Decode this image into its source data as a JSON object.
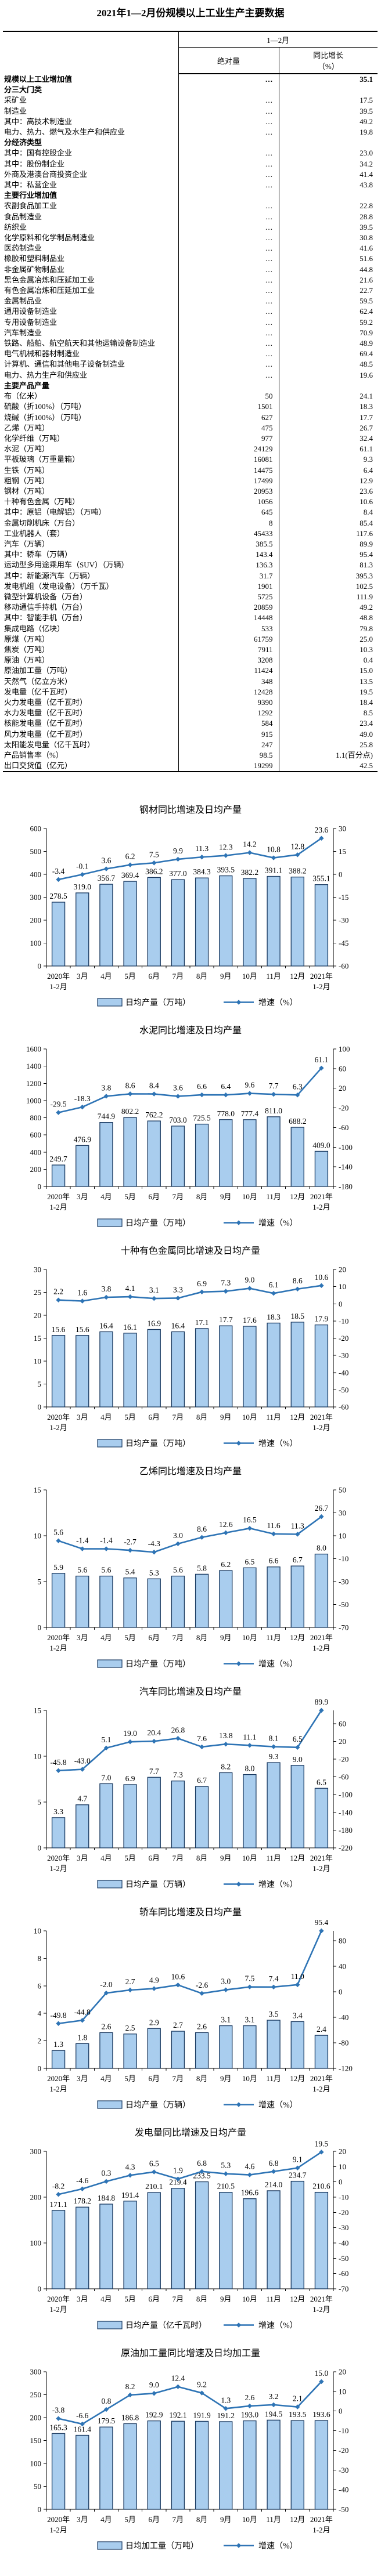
{
  "page": {
    "title": "2021年1—2月份规模以上工业生产主要数据"
  },
  "table": {
    "period_header": "1—2月",
    "col_absolute": "绝对量",
    "col_growth_line1": "同比增长",
    "col_growth_line2": "（%）",
    "rows": [
      {
        "l": "规模以上工业增加值",
        "a": "…",
        "g": "35.1",
        "b": 1,
        "i": 0
      },
      {
        "l": "分三大门类",
        "a": "",
        "g": "",
        "b": 1,
        "i": 0
      },
      {
        "l": "采矿业",
        "a": "…",
        "g": "17.5",
        "b": 0,
        "i": 1
      },
      {
        "l": "制造业",
        "a": "…",
        "g": "39.5",
        "b": 0,
        "i": 1
      },
      {
        "l": "其中：高技术制造业",
        "a": "…",
        "g": "49.2",
        "b": 0,
        "i": 2
      },
      {
        "l": "电力、热力、燃气及水生产和供应业",
        "a": "…",
        "g": "19.8",
        "b": 0,
        "i": 1
      },
      {
        "l": "分经济类型",
        "a": "",
        "g": "",
        "b": 1,
        "i": 0
      },
      {
        "l": "其中：国有控股企业",
        "a": "…",
        "g": "23.0",
        "b": 0,
        "i": 1
      },
      {
        "l": "其中：股份制企业",
        "a": "…",
        "g": "34.2",
        "b": 0,
        "i": 1
      },
      {
        "l": "外商及港澳台商投资企业",
        "a": "…",
        "g": "41.4",
        "b": 0,
        "i": 3
      },
      {
        "l": "其中：私营企业",
        "a": "…",
        "g": "43.8",
        "b": 0,
        "i": 1
      },
      {
        "l": "主要行业增加值",
        "a": "",
        "g": "",
        "b": 1,
        "i": 0
      },
      {
        "l": "农副食品加工业",
        "a": "…",
        "g": "22.8",
        "b": 0,
        "i": 1
      },
      {
        "l": "食品制造业",
        "a": "…",
        "g": "28.8",
        "b": 0,
        "i": 1
      },
      {
        "l": "纺织业",
        "a": "…",
        "g": "39.5",
        "b": 0,
        "i": 1
      },
      {
        "l": "化学原料和化学制品制造业",
        "a": "…",
        "g": "30.8",
        "b": 0,
        "i": 1
      },
      {
        "l": "医药制造业",
        "a": "…",
        "g": "41.6",
        "b": 0,
        "i": 1
      },
      {
        "l": "橡胶和塑料制品业",
        "a": "…",
        "g": "51.6",
        "b": 0,
        "i": 1
      },
      {
        "l": "非金属矿物制品业",
        "a": "…",
        "g": "44.8",
        "b": 0,
        "i": 1
      },
      {
        "l": "黑色金属冶炼和压延加工业",
        "a": "…",
        "g": "21.6",
        "b": 0,
        "i": 1
      },
      {
        "l": "有色金属冶炼和压延加工业",
        "a": "…",
        "g": "22.7",
        "b": 0,
        "i": 1
      },
      {
        "l": "金属制品业",
        "a": "…",
        "g": "59.5",
        "b": 0,
        "i": 1
      },
      {
        "l": "通用设备制造业",
        "a": "…",
        "g": "62.4",
        "b": 0,
        "i": 1
      },
      {
        "l": "专用设备制造业",
        "a": "…",
        "g": "59.2",
        "b": 0,
        "i": 1
      },
      {
        "l": "汽车制造业",
        "a": "…",
        "g": "70.9",
        "b": 0,
        "i": 1
      },
      {
        "l": "铁路、船舶、航空航天和其他运输设备制造业",
        "a": "…",
        "g": "48.9",
        "b": 0,
        "i": 1
      },
      {
        "l": "电气机械和器材制造业",
        "a": "…",
        "g": "69.4",
        "b": 0,
        "i": 1
      },
      {
        "l": "计算机、通信和其他电子设备制造业",
        "a": "…",
        "g": "48.5",
        "b": 0,
        "i": 1
      },
      {
        "l": "电力、热力生产和供应业",
        "a": "…",
        "g": "19.6",
        "b": 0,
        "i": 1
      },
      {
        "l": "主要产品产量",
        "a": "",
        "g": "",
        "b": 1,
        "i": 0
      },
      {
        "l": "布（亿米）",
        "a": "50",
        "g": "24.1",
        "b": 0,
        "i": 1
      },
      {
        "l": "硫酸（折100%）（万吨）",
        "a": "1501",
        "g": "18.3",
        "b": 0,
        "i": 1
      },
      {
        "l": "烧碱（折100%）（万吨）",
        "a": "627",
        "g": "17.7",
        "b": 0,
        "i": 1
      },
      {
        "l": "乙烯（万吨）",
        "a": "475",
        "g": "26.7",
        "b": 0,
        "i": 1
      },
      {
        "l": "化学纤维（万吨）",
        "a": "977",
        "g": "32.4",
        "b": 0,
        "i": 1
      },
      {
        "l": "水泥（万吨）",
        "a": "24129",
        "g": "61.1",
        "b": 0,
        "i": 1
      },
      {
        "l": "平板玻璃（万重量箱）",
        "a": "16081",
        "g": "9.3",
        "b": 0,
        "i": 1
      },
      {
        "l": "生铁（万吨）",
        "a": "14475",
        "g": "6.4",
        "b": 0,
        "i": 1
      },
      {
        "l": "粗钢（万吨）",
        "a": "17499",
        "g": "12.9",
        "b": 0,
        "i": 1
      },
      {
        "l": "钢材（万吨）",
        "a": "20953",
        "g": "23.6",
        "b": 0,
        "i": 1
      },
      {
        "l": "十种有色金属（万吨）",
        "a": "1056",
        "g": "10.6",
        "b": 0,
        "i": 1
      },
      {
        "l": "其中：原铝（电解铝）（万吨）",
        "a": "645",
        "g": "8.4",
        "b": 0,
        "i": 2
      },
      {
        "l": "金属切削机床（万台）",
        "a": "8",
        "g": "85.4",
        "b": 0,
        "i": 1
      },
      {
        "l": "工业机器人（套）",
        "a": "45433",
        "g": "117.6",
        "b": 0,
        "i": 1
      },
      {
        "l": "汽车（万辆）",
        "a": "385.5",
        "g": "89.9",
        "b": 0,
        "i": 1
      },
      {
        "l": "其中：轿车（万辆）",
        "a": "143.4",
        "g": "95.4",
        "b": 0,
        "i": 2
      },
      {
        "l": "运动型多用途乘用车（SUV）（万辆）",
        "a": "136.3",
        "g": "81.3",
        "b": 0,
        "i": 3
      },
      {
        "l": "其中：新能源汽车（万辆）",
        "a": "31.7",
        "g": "395.3",
        "b": 0,
        "i": 2
      },
      {
        "l": "发电机组（发电设备）（万千瓦）",
        "a": "1901",
        "g": "102.5",
        "b": 0,
        "i": 1
      },
      {
        "l": "微型计算机设备（万台）",
        "a": "5725",
        "g": "111.9",
        "b": 0,
        "i": 1
      },
      {
        "l": "移动通信手持机（万台）",
        "a": "20859",
        "g": "49.2",
        "b": 0,
        "i": 1
      },
      {
        "l": "其中：智能手机（万台）",
        "a": "14448",
        "g": "48.8",
        "b": 0,
        "i": 2
      },
      {
        "l": "集成电路（亿块）",
        "a": "533",
        "g": "79.8",
        "b": 0,
        "i": 1
      },
      {
        "l": "原煤（万吨）",
        "a": "61759",
        "g": "25.0",
        "b": 0,
        "i": 1
      },
      {
        "l": "焦炭（万吨）",
        "a": "7911",
        "g": "10.3",
        "b": 0,
        "i": 1
      },
      {
        "l": "原油（万吨）",
        "a": "3208",
        "g": "0.4",
        "b": 0,
        "i": 1
      },
      {
        "l": "原油加工量（万吨）",
        "a": "11424",
        "g": "15.0",
        "b": 0,
        "i": 1
      },
      {
        "l": "天然气（亿立方米）",
        "a": "348",
        "g": "13.5",
        "b": 0,
        "i": 1
      },
      {
        "l": "发电量（亿千瓦时）",
        "a": "12428",
        "g": "19.5",
        "b": 0,
        "i": 1
      },
      {
        "l": "火力发电量（亿千瓦时）",
        "a": "9390",
        "g": "18.4",
        "b": 0,
        "i": 2
      },
      {
        "l": "水力发电量（亿千瓦时）",
        "a": "1292",
        "g": "8.5",
        "b": 0,
        "i": 2
      },
      {
        "l": "核能发电量（亿千瓦时）",
        "a": "584",
        "g": "23.4",
        "b": 0,
        "i": 2
      },
      {
        "l": "风力发电量（亿千瓦时）",
        "a": "915",
        "g": "49.0",
        "b": 0,
        "i": 2
      },
      {
        "l": "太阳能发电量（亿千瓦时）",
        "a": "247",
        "g": "25.8",
        "b": 0,
        "i": 2
      },
      {
        "l": "产品销售率（%）",
        "a": "98.5",
        "g": "1.1(百分点)",
        "b": 0,
        "i": 1
      },
      {
        "l": "出口交货值（亿元）",
        "a": "19299",
        "g": "42.5",
        "b": 0,
        "i": 1
      }
    ]
  },
  "colors": {
    "bar_fill": "#A9CDEE",
    "bar_border": "#17375E",
    "line": "#2E74B5",
    "text": "#000000"
  },
  "chart_common": {
    "categories": [
      [
        "2020年",
        "1-2月"
      ],
      "3月",
      "4月",
      "5月",
      "6月",
      "7月",
      "8月",
      "9月",
      "10月",
      "11月",
      "12月",
      [
        "2021年",
        "1-2月"
      ]
    ],
    "growth_legend": "增速（%）"
  },
  "chart_data": [
    {
      "type": "bar-line",
      "key": "steel",
      "title": "钢材同比增速及日均产量",
      "bar_legend": "日均产量（万吨）",
      "bar_values": [
        278.5,
        319.0,
        356.7,
        369.4,
        386.2,
        377.0,
        384.3,
        393.5,
        382.2,
        391.1,
        388.2,
        355.1
      ],
      "line_values": [
        -3.4,
        -0.1,
        3.6,
        6.2,
        7.5,
        9.9,
        11.3,
        12.3,
        14.2,
        10.8,
        12.8,
        23.6
      ],
      "left_ticks": [
        0,
        100,
        200,
        300,
        400,
        500,
        600
      ],
      "right_ticks": [
        -60,
        -45,
        -30,
        -15,
        0,
        15,
        30
      ]
    },
    {
      "type": "bar-line",
      "key": "cement",
      "title": "水泥同比增速及日均产量",
      "bar_legend": "日均产量（万吨）",
      "bar_values": [
        249.7,
        476.9,
        744.9,
        802.2,
        762.2,
        703.0,
        725.5,
        778.0,
        777.4,
        811.0,
        688.2,
        409.0
      ],
      "line_values": [
        -29.5,
        -18.3,
        3.8,
        8.6,
        8.4,
        3.6,
        6.6,
        6.4,
        9.6,
        7.7,
        6.3,
        61.1
      ],
      "left_ticks": [
        0,
        200,
        400,
        600,
        800,
        1000,
        1200,
        1400,
        1600
      ],
      "right_ticks": [
        -180,
        -140,
        -100,
        -60,
        -20,
        20,
        60,
        100
      ]
    },
    {
      "type": "bar-line",
      "key": "nonferrous",
      "title": "十种有色金属同比增速及日均产量",
      "bar_legend": "日均产量（万吨）",
      "bar_values": [
        15.6,
        15.6,
        16.4,
        16.1,
        16.9,
        16.4,
        17.1,
        17.7,
        17.6,
        18.3,
        18.5,
        17.9
      ],
      "line_values": [
        2.2,
        1.6,
        3.8,
        4.1,
        3.1,
        3.3,
        6.9,
        7.3,
        9.0,
        6.1,
        8.6,
        10.6
      ],
      "left_ticks": [
        0,
        5,
        10,
        15,
        20,
        25,
        30
      ],
      "right_ticks": [
        -60,
        -50,
        -40,
        -30,
        -20,
        -10,
        0,
        10,
        20
      ]
    },
    {
      "type": "bar-line",
      "key": "ethylene",
      "title": "乙烯同比增速及日均产量",
      "bar_legend": "日均产量（万吨）",
      "bar_values": [
        5.9,
        5.6,
        5.6,
        5.4,
        5.3,
        5.6,
        5.8,
        6.2,
        6.5,
        6.6,
        6.7,
        8.0
      ],
      "line_values": [
        5.6,
        -1.4,
        -1.4,
        -2.7,
        -4.3,
        3.0,
        8.6,
        12.6,
        16.5,
        11.6,
        11.3,
        26.7
      ],
      "left_ticks": [
        0,
        5,
        10,
        15
      ],
      "right_ticks": [
        -70,
        -50,
        -30,
        -10,
        10,
        30,
        50
      ]
    },
    {
      "type": "bar-line",
      "key": "auto",
      "title": "汽车同比增速及日均产量",
      "bar_legend": "日均产量（万辆）",
      "bar_values": [
        3.3,
        4.7,
        7.0,
        6.9,
        7.7,
        7.3,
        6.7,
        8.2,
        8.0,
        9.3,
        9.0,
        6.5
      ],
      "line_values": [
        -45.8,
        -43.0,
        5.1,
        19.0,
        20.4,
        26.8,
        7.6,
        13.8,
        11.1,
        8.1,
        6.5,
        89.9
      ],
      "left_ticks": [
        0,
        5,
        10,
        15
      ],
      "right_ticks": [
        -220,
        -180,
        -140,
        -100,
        -60,
        -20,
        20,
        60
      ]
    },
    {
      "type": "bar-line",
      "key": "car",
      "title": "轿车同比增速及日均产量",
      "bar_legend": "日均产量（万辆）",
      "bar_values": [
        1.3,
        1.8,
        2.6,
        2.5,
        2.9,
        2.7,
        2.6,
        3.1,
        3.1,
        3.5,
        3.4,
        2.4
      ],
      "line_values": [
        -49.8,
        -44.8,
        -2.0,
        2.7,
        4.9,
        10.6,
        -2.6,
        3.0,
        7.5,
        7.4,
        11.0,
        95.4
      ],
      "left_ticks": [
        0,
        2,
        4,
        6,
        8,
        10
      ],
      "right_ticks": [
        -120,
        -80,
        -40,
        0,
        40,
        80
      ]
    },
    {
      "type": "bar-line",
      "key": "electricity",
      "title": "发电量同比增速及日均产量",
      "bar_legend": "日均产量（亿千瓦时）",
      "bar_values": [
        171.1,
        178.2,
        184.8,
        191.4,
        210.1,
        219.4,
        233.5,
        210.5,
        196.6,
        214.0,
        234.7,
        210.6
      ],
      "line_values": [
        -8.2,
        -4.6,
        0.3,
        4.3,
        6.5,
        1.9,
        6.8,
        5.3,
        4.6,
        6.8,
        9.1,
        19.5
      ],
      "left_ticks": [
        0,
        100,
        200,
        300
      ],
      "right_ticks": [
        -70,
        -60,
        -50,
        -40,
        -30,
        -20,
        -10,
        0,
        10,
        20
      ]
    },
    {
      "type": "bar-line",
      "key": "crude",
      "title": "原油加工量同比增速及日均加工量",
      "bar_legend": "日均加工量（万吨）",
      "bar_values": [
        165.3,
        161.4,
        179.5,
        186.8,
        192.9,
        192.1,
        191.9,
        191.2,
        193.0,
        194.5,
        193.5,
        193.6
      ],
      "line_values": [
        -3.8,
        -6.6,
        0.8,
        8.2,
        9.0,
        12.4,
        9.2,
        1.3,
        2.6,
        3.2,
        2.1,
        15.0
      ],
      "left_ticks": [
        0,
        50,
        100,
        150,
        200,
        250,
        300
      ],
      "right_ticks": [
        -50,
        -40,
        -30,
        -20,
        -10,
        0,
        10,
        20
      ]
    }
  ]
}
